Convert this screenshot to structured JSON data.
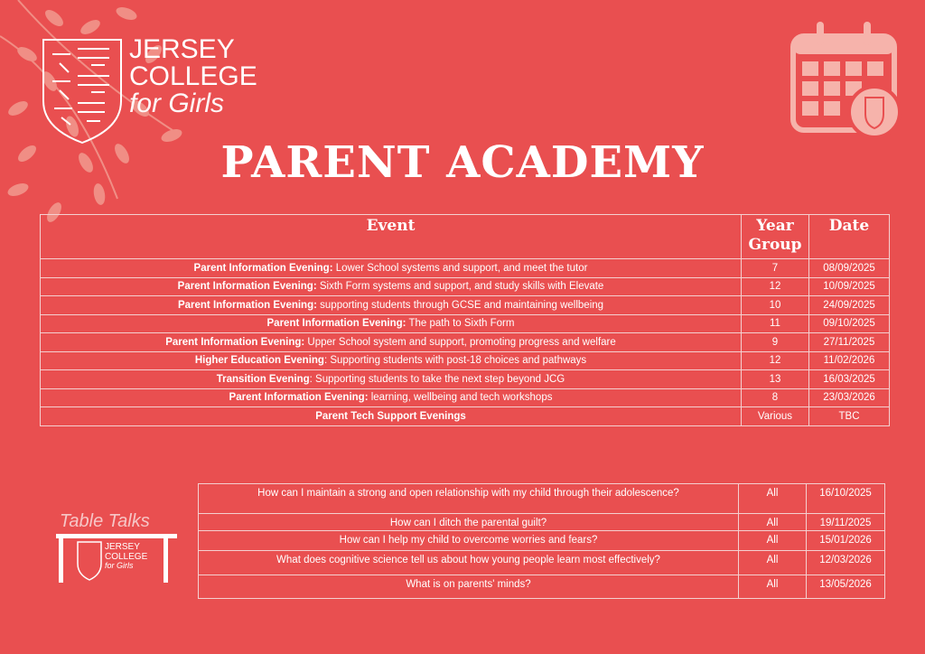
{
  "brand": {
    "line1": "JERSEY",
    "line2": "COLLEGE",
    "line3": "for Girls"
  },
  "title": "PARENT ACADEMY",
  "events_table": {
    "headers": {
      "event": "Event",
      "year": "Year Group",
      "date": "Date"
    },
    "rows": [
      {
        "bold": "Parent Information Evening:",
        "text": " Lower School systems and support, and meet the tutor",
        "year": "7",
        "date": "08/09/2025"
      },
      {
        "bold": "Parent Information Evening:",
        "text": " Sixth Form systems and support, and study skills with Elevate",
        "year": "12",
        "date": "10/09/2025"
      },
      {
        "bold": "Parent Information Evening:",
        "text": " supporting students through GCSE and maintaining wellbeing",
        "year": "10",
        "date": "24/09/2025"
      },
      {
        "bold": "Parent Information Evening:",
        "text": " The path to Sixth Form",
        "year": "11",
        "date": "09/10/2025"
      },
      {
        "bold": "Parent Information Evening:",
        "text": " Upper School system and support, promoting progress and welfare",
        "year": "9",
        "date": "27/11/2025"
      },
      {
        "bold": "Higher Education Evening",
        "text": ": Supporting students with post-18 choices and pathways",
        "year": "12",
        "date": "11/02/2026"
      },
      {
        "bold": "Transition Evening",
        "text": ": Supporting students to take the next step beyond JCG",
        "year": "13",
        "date": "16/03/2025"
      },
      {
        "bold": "Parent Information Evening:",
        "text": " learning, wellbeing and tech workshops",
        "year": "8",
        "date": "23/03/2026"
      },
      {
        "bold": "Parent Tech Support Evenings",
        "text": "",
        "year": "Various",
        "date": "TBC"
      }
    ]
  },
  "table_talks": {
    "label": "Table Talks",
    "logo": {
      "line1": "JERSEY",
      "line2": "COLLEGE",
      "line3": "for Girls"
    },
    "rows": [
      {
        "text": "How can I maintain a strong and open relationship with my child through their adolescence?",
        "year": "All",
        "date": "16/10/2025"
      },
      {
        "text": "How can I ditch the parental guilt?",
        "year": "All",
        "date": "19/11/2025"
      },
      {
        "text": "How can I help my child to overcome worries and fears?",
        "year": "All",
        "date": "15/01/2026"
      },
      {
        "text": "What does cognitive science tell us about how young people learn most effectively?",
        "year": "All",
        "date": "12/03/2026"
      },
      {
        "text": "What is on parents' minds?",
        "year": "All",
        "date": "13/05/2026"
      }
    ]
  },
  "colors": {
    "background": "#e94f50",
    "foreground": "#ffffff",
    "leaf": "#f29a8f"
  }
}
